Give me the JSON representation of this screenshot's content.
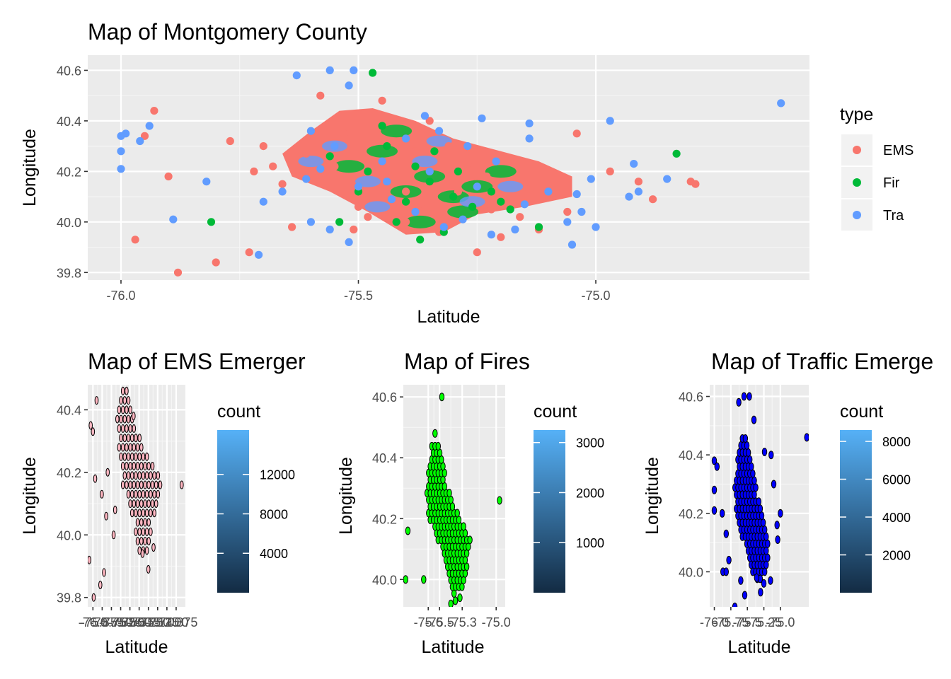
{
  "chart_data": [
    {
      "type": "scatter",
      "title": "Map of Montgomery County",
      "xlabel": "Latitude",
      "ylabel": "Longitude",
      "xlim": [
        -76.07,
        -74.55
      ],
      "ylim": [
        39.77,
        40.66
      ],
      "x_ticks": [
        -76.0,
        -75.5,
        -75.0
      ],
      "x_tick_labels": [
        "-76.0",
        "-75.5",
        "-75.0"
      ],
      "y_ticks": [
        39.8,
        40.0,
        40.2,
        40.4,
        40.6
      ],
      "y_tick_labels": [
        "39.8",
        "40.0",
        "40.2",
        "40.4",
        "40.6"
      ],
      "grid": true,
      "legend": {
        "title": "type",
        "position": "right",
        "entries": [
          "EMS",
          "Fir",
          "Tra"
        ]
      },
      "series": [
        {
          "name": "EMS",
          "color": "#F8766D",
          "points": [
            [
              -75.93,
              40.44
            ],
            [
              -75.95,
              40.34
            ],
            [
              -75.88,
              39.8
            ],
            [
              -75.8,
              39.84
            ],
            [
              -75.77,
              40.32
            ],
            [
              -75.72,
              40.2
            ],
            [
              -75.9,
              40.18
            ],
            [
              -75.97,
              39.93
            ],
            [
              -75.73,
              39.88
            ],
            [
              -75.64,
              39.98
            ],
            [
              -75.51,
              39.97
            ],
            [
              -75.4,
              40.0
            ],
            [
              -75.33,
              39.96
            ],
            [
              -75.25,
              39.88
            ],
            [
              -75.2,
              39.94
            ],
            [
              -75.12,
              39.97
            ],
            [
              -75.04,
              40.35
            ],
            [
              -74.97,
              40.2
            ],
            [
              -74.91,
              40.16
            ],
            [
              -74.88,
              40.09
            ],
            [
              -74.79,
              40.15
            ],
            [
              -74.8,
              40.16
            ],
            [
              -75.58,
              40.5
            ],
            [
              -75.45,
              40.48
            ],
            [
              -75.14,
              40.13
            ],
            [
              -75.06,
              40.04
            ],
            [
              -75.5,
              40.06
            ],
            [
              -75.38,
              40.28
            ],
            [
              -75.29,
              40.12
            ],
            [
              -75.68,
              40.22
            ],
            [
              -75.53,
              40.35
            ],
            [
              -75.43,
              40.18
            ],
            [
              -75.36,
              40.05
            ],
            [
              -75.23,
              40.18
            ],
            [
              -75.61,
              40.27
            ],
            [
              -75.46,
              40.39
            ],
            [
              -75.31,
              40.3
            ],
            [
              -75.19,
              40.1
            ],
            [
              -75.66,
              40.15
            ],
            [
              -75.55,
              40.22
            ],
            [
              -75.4,
              40.12
            ],
            [
              -75.27,
              40.23
            ],
            [
              -75.16,
              40.02
            ],
            [
              -75.7,
              40.3
            ],
            [
              -75.48,
              40.02
            ],
            [
              -75.35,
              40.4
            ],
            [
              -75.22,
              40.05
            ],
            [
              -75.09,
              40.11
            ]
          ]
        },
        {
          "name": "Fir",
          "color": "#00BA38",
          "points": [
            [
              -75.47,
              40.59
            ],
            [
              -75.81,
              40.0
            ],
            [
              -74.83,
              40.27
            ],
            [
              -75.54,
              40.0
            ],
            [
              -75.12,
              39.98
            ],
            [
              -75.37,
              39.93
            ],
            [
              -75.32,
              39.96
            ],
            [
              -75.42,
              40.0
            ],
            [
              -75.35,
              40.16
            ],
            [
              -75.3,
              40.1
            ],
            [
              -75.26,
              40.06
            ],
            [
              -75.2,
              40.08
            ],
            [
              -75.48,
              40.2
            ],
            [
              -75.44,
              40.3
            ],
            [
              -75.38,
              40.22
            ],
            [
              -75.56,
              40.26
            ],
            [
              -75.29,
              40.2
            ],
            [
              -75.22,
              40.12
            ],
            [
              -75.4,
              40.08
            ],
            [
              -75.5,
              40.12
            ],
            [
              -75.34,
              40.28
            ],
            [
              -75.45,
              40.38
            ],
            [
              -75.18,
              40.05
            ]
          ]
        },
        {
          "name": "Tra",
          "color": "#619CFF",
          "points": [
            [
              -75.51,
              40.6
            ],
            [
              -75.63,
              40.58
            ],
            [
              -75.56,
              40.6
            ],
            [
              -74.61,
              40.47
            ],
            [
              -75.94,
              40.38
            ],
            [
              -75.99,
              40.35
            ],
            [
              -76.0,
              40.34
            ],
            [
              -75.96,
              40.32
            ],
            [
              -76.0,
              40.28
            ],
            [
              -76.0,
              40.21
            ],
            [
              -75.82,
              40.16
            ],
            [
              -75.89,
              40.01
            ],
            [
              -75.7,
              40.08
            ],
            [
              -75.66,
              40.12
            ],
            [
              -75.71,
              39.87
            ],
            [
              -75.61,
              40.17
            ],
            [
              -75.56,
              39.97
            ],
            [
              -75.52,
              39.92
            ],
            [
              -75.52,
              40.54
            ],
            [
              -75.6,
              40.0
            ],
            [
              -75.36,
              40.42
            ],
            [
              -75.24,
              40.41
            ],
            [
              -75.14,
              40.39
            ],
            [
              -75.14,
              40.33
            ],
            [
              -74.97,
              40.4
            ],
            [
              -75.01,
              40.17
            ],
            [
              -74.92,
              40.23
            ],
            [
              -74.85,
              40.17
            ],
            [
              -74.91,
              40.12
            ],
            [
              -75.04,
              40.11
            ],
            [
              -75.06,
              40.0
            ],
            [
              -75.03,
              40.04
            ],
            [
              -75.0,
              39.98
            ],
            [
              -75.05,
              39.91
            ],
            [
              -74.93,
              40.1
            ],
            [
              -75.15,
              40.07
            ],
            [
              -75.17,
              39.97
            ],
            [
              -75.22,
              39.95
            ],
            [
              -75.28,
              40.01
            ],
            [
              -75.32,
              39.98
            ],
            [
              -75.38,
              40.04
            ],
            [
              -75.43,
              40.09
            ],
            [
              -75.5,
              40.14
            ],
            [
              -75.45,
              40.24
            ],
            [
              -75.4,
              40.33
            ],
            [
              -75.33,
              40.36
            ],
            [
              -75.27,
              40.3
            ],
            [
              -75.21,
              40.24
            ],
            [
              -75.55,
              40.3
            ],
            [
              -75.6,
              40.36
            ],
            [
              -75.35,
              40.2
            ],
            [
              -75.25,
              40.14
            ],
            [
              -75.1,
              40.12
            ],
            [
              -75.44,
              40.16
            ],
            [
              -75.58,
              40.21
            ]
          ]
        }
      ]
    },
    {
      "type": "heatmap",
      "subtype": "hexbin",
      "title": "Map of EMS Emerger",
      "xlabel": "Latitude",
      "ylabel": "Longitude",
      "xlim": [
        -76.07,
        -74.75
      ],
      "ylim": [
        39.77,
        40.48
      ],
      "x_ticks": [
        -76.0,
        -75.875,
        -75.75,
        -75.625,
        -75.5,
        -75.375,
        -75.25,
        -75.125,
        -75.0,
        -74.875
      ],
      "x_tick_labels": [
        "-76.0",
        "-75.875",
        "-75.750",
        "-75.625",
        "-75.500",
        "-75.375",
        "-75.250",
        "-75.125",
        "-75.000",
        "-74.875"
      ],
      "y_ticks": [
        39.8,
        40.0,
        40.2,
        40.4
      ],
      "y_tick_labels": [
        "39.8",
        "40.0",
        "40.2",
        "40.4"
      ],
      "fill_color": "#FFB6C1",
      "outline_color": "#000000",
      "legend": {
        "title": "count",
        "position": "right",
        "ticks": [
          4000,
          8000,
          12000
        ],
        "tick_labels": [
          "4000",
          "8000",
          "12000"
        ],
        "range": [
          0,
          16500
        ],
        "low_color": "#132B43",
        "high_color": "#56B1F7"
      }
    },
    {
      "type": "heatmap",
      "subtype": "hexbin",
      "title": "Map of Fires",
      "xlabel": "Latitude",
      "ylabel": "Longitude",
      "xlim": [
        -75.82,
        -74.92
      ],
      "ylim": [
        39.91,
        40.64
      ],
      "x_ticks": [
        -75.6,
        -75.5,
        -75.3,
        -75.0
      ],
      "x_tick_labels": [
        "-75.6",
        "-75.5",
        "-75.3",
        "-75.0"
      ],
      "y_ticks": [
        40.0,
        40.2,
        40.4,
        40.6
      ],
      "y_tick_labels": [
        "40.0",
        "40.2",
        "40.4",
        "40.6"
      ],
      "fill_color": "#00FF00",
      "outline_color": "#000000",
      "legend": {
        "title": "count",
        "position": "right",
        "ticks": [
          1000,
          2000,
          3000
        ],
        "tick_labels": [
          "1000",
          "2000",
          "3000"
        ],
        "range": [
          0,
          3250
        ],
        "low_color": "#132B43",
        "high_color": "#56B1F7"
      }
    },
    {
      "type": "heatmap",
      "subtype": "hexbin",
      "title": "Map of Traffic Emerge",
      "xlabel": "Latitude",
      "ylabel": "Longitude",
      "xlim": [
        -76.07,
        -74.57
      ],
      "ylim": [
        39.88,
        40.64
      ],
      "x_ticks": [
        -76.0,
        -75.75,
        -75.5,
        -75.25,
        -75.0
      ],
      "x_tick_labels": [
        "-76.0",
        "-75.75",
        "-75.5",
        "-75.25",
        "-75.0"
      ],
      "y_ticks": [
        40.0,
        40.2,
        40.4,
        40.6
      ],
      "y_tick_labels": [
        "40.0",
        "40.2",
        "40.4",
        "40.6"
      ],
      "fill_color": "#0000FF",
      "outline_color": "#000000",
      "legend": {
        "title": "count",
        "position": "right",
        "ticks": [
          2000,
          4000,
          6000,
          8000
        ],
        "tick_labels": [
          "2000",
          "4000",
          "6000",
          "8000"
        ],
        "range": [
          0,
          8600
        ],
        "low_color": "#132B43",
        "high_color": "#56B1F7"
      }
    }
  ]
}
